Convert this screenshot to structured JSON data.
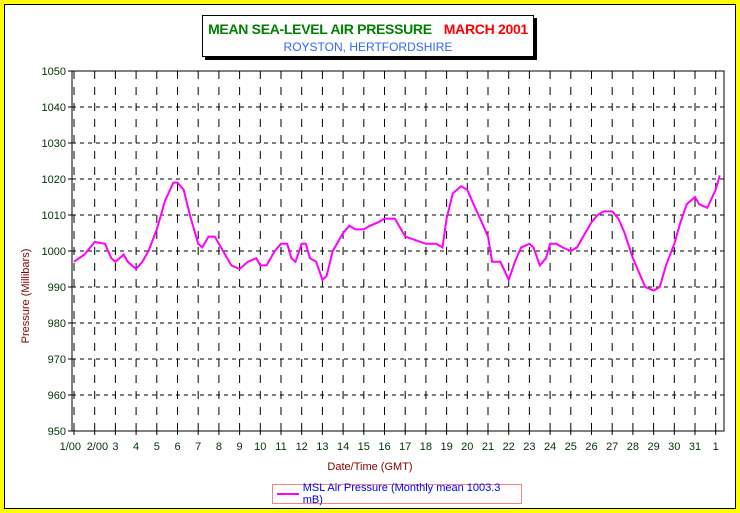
{
  "chart_data": {
    "type": "line",
    "title": "MEAN SEA-LEVEL AIR PRESSURE",
    "title_month": "MARCH 2001",
    "subtitle": "ROYSTON, HERTFORDSHIRE",
    "xlabel": "Date/Time (GMT)",
    "ylabel": "Pressure (Millibars)",
    "ylim": [
      950,
      1050
    ],
    "yticks": [
      950,
      960,
      970,
      980,
      990,
      1000,
      1010,
      1020,
      1030,
      1040,
      1050
    ],
    "xlim": [
      1,
      32.4
    ],
    "xtick_labels": [
      "1/00",
      "2/00",
      "3",
      "4",
      "5",
      "6",
      "7",
      "8",
      "9",
      "10",
      "11",
      "12",
      "13",
      "14",
      "15",
      "16",
      "17",
      "18",
      "19",
      "20",
      "21",
      "22",
      "23",
      "24",
      "25",
      "26",
      "27",
      "28",
      "29",
      "30",
      "31",
      "1"
    ],
    "grid": true,
    "legend_position": "bottom-center",
    "series": [
      {
        "name": "MSL Air Pressure (Monthly mean 1003.3 mB)",
        "color": "#ff00ff",
        "x": [
          1,
          1.5,
          2,
          2.5,
          2.8,
          3,
          3.4,
          3.6,
          4,
          4.3,
          4.6,
          5,
          5.4,
          5.8,
          6,
          6.3,
          6.6,
          7,
          7.2,
          7.5,
          7.8,
          8,
          8.3,
          8.6,
          9,
          9.4,
          9.8,
          10,
          10.3,
          10.7,
          11,
          11.3,
          11.5,
          11.7,
          12,
          12.2,
          12.4,
          12.7,
          13,
          13.2,
          13.5,
          14,
          14.3,
          14.6,
          15,
          15.3,
          15.7,
          16,
          16.5,
          16.8,
          17,
          17.5,
          18,
          18.5,
          18.8,
          19,
          19.3,
          19.7,
          20,
          20.3,
          20.7,
          21,
          21.2,
          21.6,
          22,
          22.3,
          22.6,
          23,
          23.2,
          23.5,
          23.8,
          24,
          24.3,
          24.6,
          25,
          25.3,
          25.6,
          26,
          26.3,
          26.6,
          27,
          27.3,
          27.6,
          28,
          28.3,
          28.6,
          29,
          29.3,
          29.6,
          30,
          30.3,
          30.6,
          31,
          31.2,
          31.6,
          32,
          32.2
        ],
        "y": [
          997,
          999,
          1002.5,
          1002,
          998,
          997,
          999,
          997,
          995,
          997,
          1000,
          1006,
          1014,
          1019,
          1019,
          1017,
          1010,
          1002,
          1001,
          1004,
          1004,
          1002,
          999,
          996,
          995,
          997,
          998,
          996,
          996,
          1000,
          1002,
          1002,
          998,
          997,
          1002,
          1002,
          998,
          997,
          992,
          993,
          1000,
          1005,
          1007,
          1006,
          1006,
          1007,
          1008,
          1009,
          1009,
          1006,
          1004,
          1003,
          1002,
          1002,
          1001,
          1009,
          1016,
          1018,
          1017,
          1013,
          1008,
          1004,
          997,
          997,
          992,
          997,
          1001,
          1002,
          1001,
          996,
          998,
          1002,
          1002,
          1001,
          1000,
          1001,
          1004,
          1008,
          1010,
          1011,
          1011,
          1009,
          1005,
          998,
          994,
          990,
          989,
          990,
          996,
          1002,
          1008,
          1013,
          1015,
          1013,
          1012,
          1017,
          1021
        ]
      }
    ]
  }
}
